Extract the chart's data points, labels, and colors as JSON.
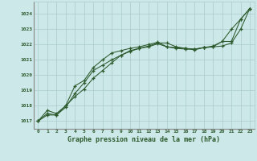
{
  "title": "Graphe pression niveau de la mer (hPa)",
  "bg_color": "#cce8e8",
  "grid_color": "#aacccc",
  "line_color": "#2d5a2d",
  "xlim": [
    -0.5,
    23.5
  ],
  "ylim": [
    1016.5,
    1024.8
  ],
  "yticks": [
    1017,
    1018,
    1019,
    1020,
    1021,
    1022,
    1023,
    1024
  ],
  "xticks": [
    0,
    1,
    2,
    3,
    4,
    5,
    6,
    7,
    8,
    9,
    10,
    11,
    12,
    13,
    14,
    15,
    16,
    17,
    18,
    19,
    20,
    21,
    22,
    23
  ],
  "series1_x": [
    0,
    1,
    2,
    3,
    4,
    5,
    6,
    7,
    8,
    9,
    10,
    11,
    12,
    13,
    14,
    15,
    16,
    17,
    18,
    19,
    20,
    21,
    22,
    23
  ],
  "series1_y": [
    1017.0,
    1017.7,
    1017.5,
    1018.0,
    1018.6,
    1019.1,
    1019.8,
    1020.3,
    1020.8,
    1021.3,
    1021.6,
    1021.75,
    1021.85,
    1022.05,
    1021.85,
    1021.75,
    1021.7,
    1021.7,
    1021.8,
    1021.85,
    1021.9,
    1022.1,
    1023.0,
    1024.35
  ],
  "series2_x": [
    0,
    1,
    2,
    3,
    4,
    5,
    6,
    7,
    8,
    9,
    10,
    11,
    12,
    13,
    14,
    15,
    16,
    17,
    18,
    19,
    20,
    21,
    22,
    23
  ],
  "series2_y": [
    1017.0,
    1017.5,
    1017.4,
    1017.9,
    1018.8,
    1019.5,
    1020.3,
    1020.65,
    1021.0,
    1021.3,
    1021.55,
    1021.75,
    1021.9,
    1022.1,
    1022.1,
    1021.85,
    1021.75,
    1021.65,
    1021.8,
    1021.85,
    1022.2,
    1022.2,
    1023.65,
    1024.35
  ],
  "series3_x": [
    0,
    1,
    2,
    3,
    4,
    5,
    6,
    7,
    8,
    9,
    10,
    11,
    12,
    13,
    14,
    15,
    16,
    17,
    18,
    19,
    20,
    21,
    22,
    23
  ],
  "series3_y": [
    1017.0,
    1017.4,
    1017.4,
    1018.0,
    1019.3,
    1019.65,
    1020.5,
    1021.0,
    1021.45,
    1021.6,
    1021.75,
    1021.85,
    1022.0,
    1022.15,
    1021.85,
    1021.8,
    1021.75,
    1021.7,
    1021.8,
    1021.9,
    1022.2,
    1023.0,
    1023.65,
    1024.35
  ]
}
